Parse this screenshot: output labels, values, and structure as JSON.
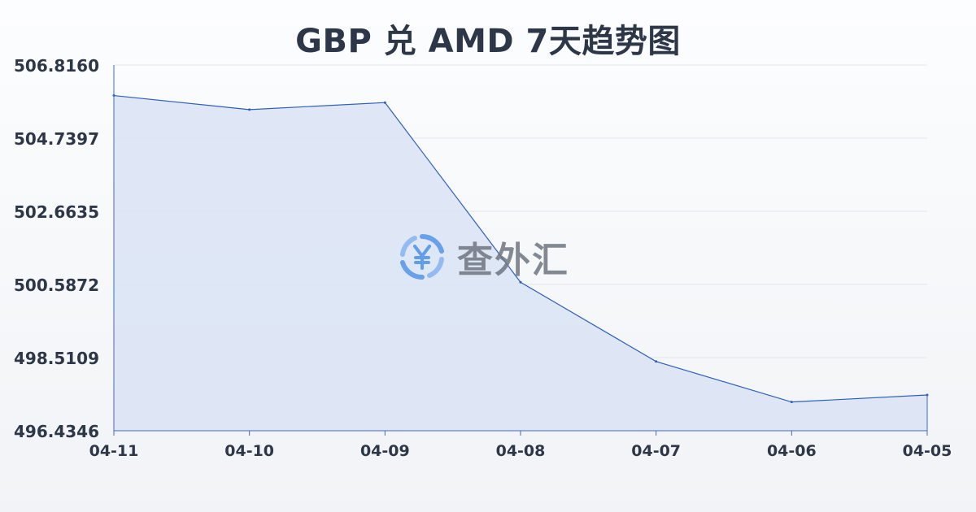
{
  "page": {
    "title": "GBP 兑 AMD 7天趋势图"
  },
  "watermark": {
    "text": "查外汇"
  },
  "colors": {
    "line": "#2c5fbf",
    "fill": "#dbe4f5",
    "grid": "#e3e6ea",
    "axis": "#3b6cc7",
    "tick_text": "#2d3748",
    "watermark_blue": "#4a8fe8"
  },
  "chart_data": {
    "type": "area",
    "title": "GBP 兑 AMD 7天趋势图",
    "xlabel": "",
    "ylabel": "",
    "categories": [
      "04-11",
      "04-10",
      "04-09",
      "04-08",
      "04-07",
      "04-06",
      "04-05"
    ],
    "series": [
      {
        "values": [
          505.95,
          505.55,
          505.75,
          500.65,
          498.4,
          497.25,
          497.45
        ]
      }
    ],
    "yticks": [
      "506.8160",
      "504.7397",
      "502.6635",
      "500.5872",
      "498.5109",
      "496.4346"
    ],
    "ylim": [
      496.4346,
      506.816
    ],
    "grid": true,
    "legend": "none"
  }
}
